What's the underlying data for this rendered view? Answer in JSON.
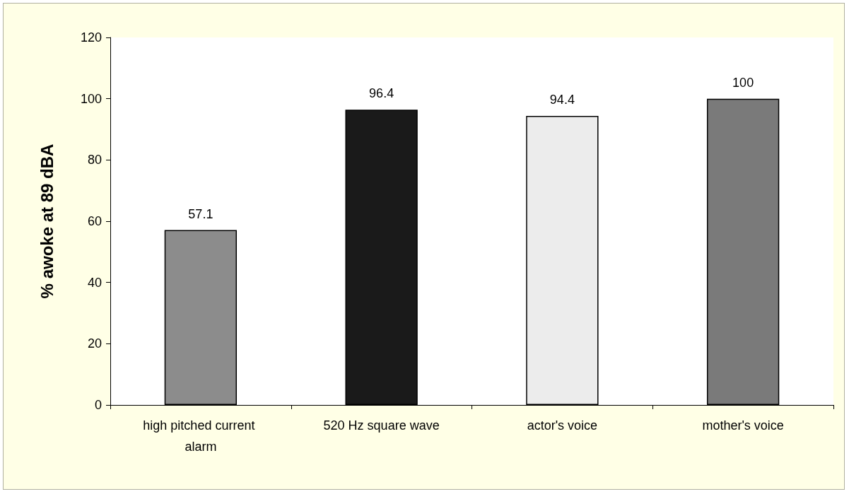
{
  "chart_data": {
    "type": "bar",
    "categories": [
      "high pitched current alarm",
      "520 Hz square wave",
      "actor's voice",
      "mother's voice"
    ],
    "values": [
      57.1,
      96.4,
      94.4,
      100
    ],
    "colors": [
      "#8c8c8c",
      "#1a1a1a",
      "#ececec",
      "#7a7a7a"
    ],
    "ylabel": "% awoke at 89 dBA",
    "ylim": [
      0,
      120
    ],
    "yticks": [
      0,
      20,
      40,
      60,
      80,
      100,
      120
    ],
    "data_labels": true,
    "grid": false
  }
}
